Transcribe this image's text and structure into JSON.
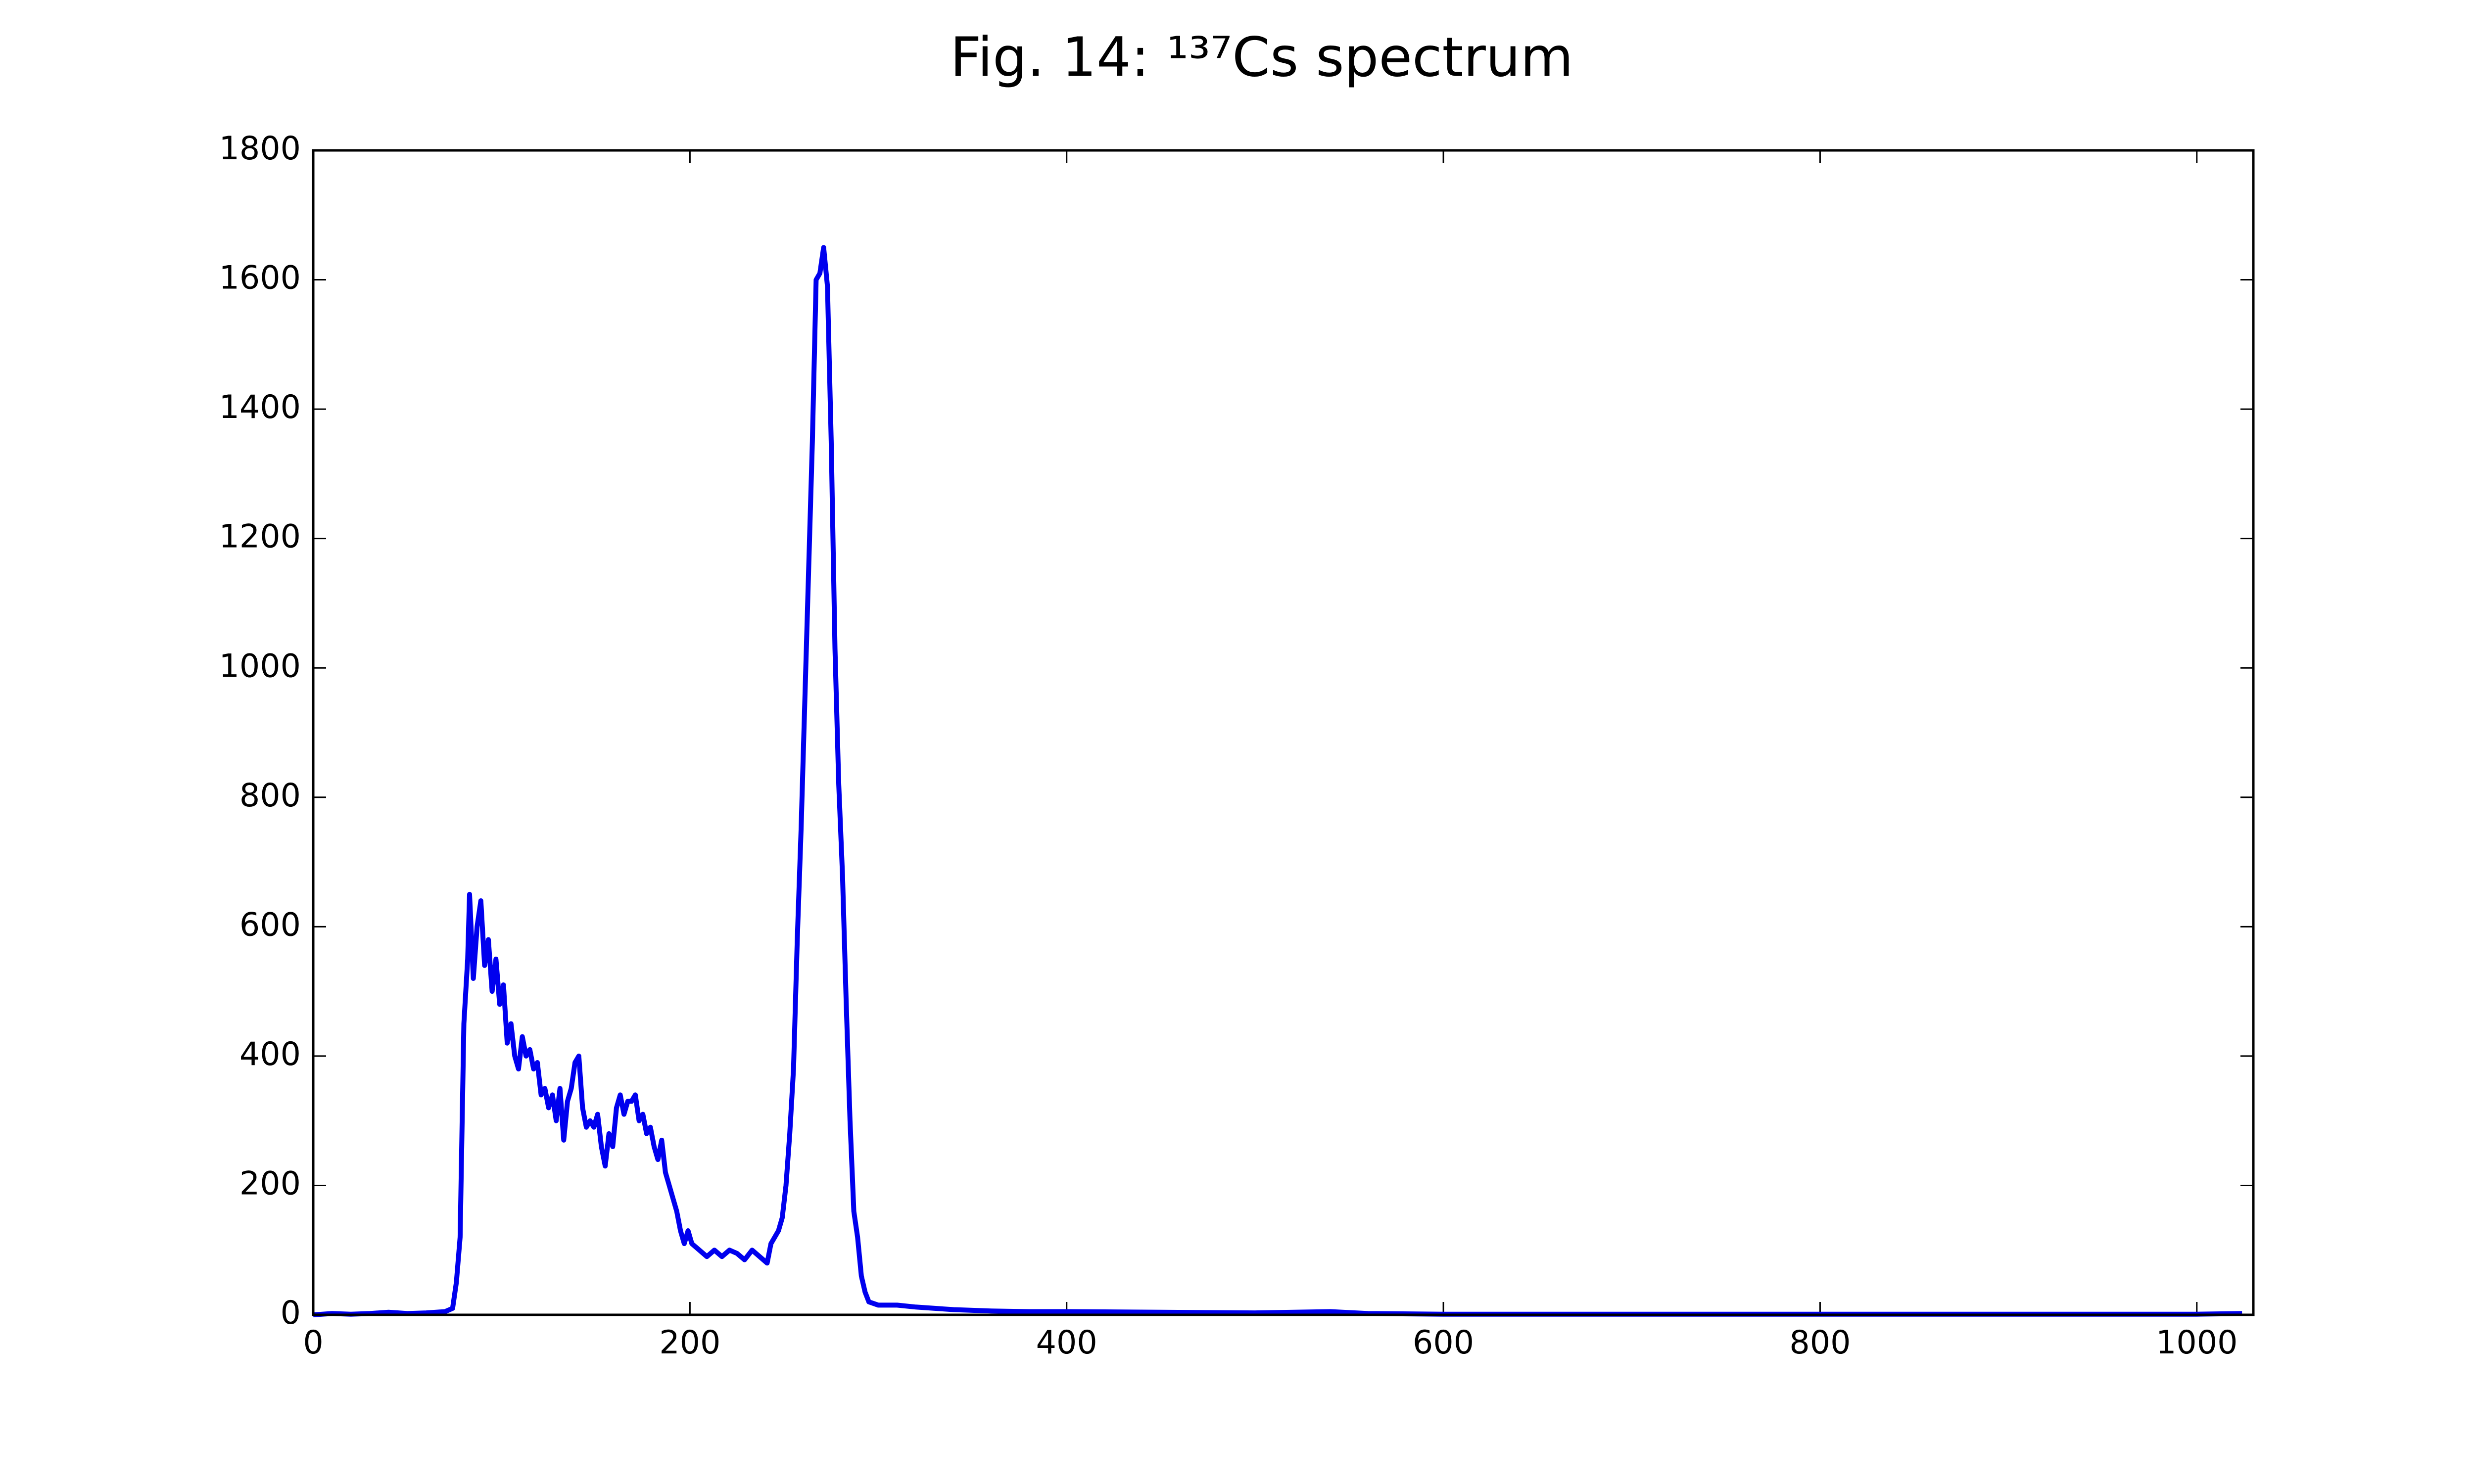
{
  "chart_data": {
    "type": "line",
    "title": "Fig. 14: ¹³⁷Cs spectrum",
    "color": "#0000ee",
    "x": [
      0,
      10,
      20,
      30,
      40,
      50,
      60,
      70,
      74,
      76,
      78,
      80,
      82,
      83,
      85,
      87,
      89,
      91,
      93,
      95,
      97,
      99,
      101,
      103,
      105,
      107,
      109,
      111,
      113,
      115,
      117,
      119,
      121,
      123,
      125,
      127,
      129,
      131,
      133,
      135,
      137,
      139,
      141,
      143,
      145,
      147,
      149,
      151,
      153,
      155,
      157,
      159,
      161,
      163,
      165,
      167,
      169,
      171,
      173,
      175,
      177,
      179,
      181,
      183,
      185,
      187,
      189,
      191,
      193,
      195,
      197,
      199,
      201,
      205,
      209,
      213,
      217,
      221,
      225,
      229,
      233,
      237,
      241,
      243,
      245,
      247,
      249,
      251,
      253,
      255,
      257,
      259,
      261,
      263,
      265,
      267,
      269,
      271,
      273,
      275,
      277,
      279,
      281,
      283,
      285,
      287,
      289,
      291,
      293,
      295,
      300,
      310,
      320,
      330,
      340,
      360,
      380,
      400,
      450,
      500,
      540,
      560,
      600,
      700,
      800,
      900,
      1000,
      1024
    ],
    "values": [
      0,
      2,
      1,
      2,
      4,
      2,
      3,
      5,
      10,
      50,
      120,
      450,
      550,
      650,
      520,
      600,
      640,
      540,
      580,
      500,
      550,
      480,
      510,
      420,
      450,
      400,
      380,
      430,
      400,
      410,
      380,
      390,
      340,
      350,
      320,
      340,
      300,
      350,
      270,
      330,
      350,
      390,
      400,
      320,
      290,
      300,
      290,
      310,
      260,
      230,
      280,
      260,
      320,
      340,
      310,
      330,
      330,
      340,
      300,
      310,
      280,
      290,
      260,
      240,
      270,
      220,
      200,
      180,
      160,
      130,
      110,
      130,
      110,
      100,
      90,
      100,
      90,
      100,
      95,
      85,
      100,
      90,
      80,
      110,
      120,
      130,
      150,
      200,
      280,
      380,
      580,
      750,
      950,
      1150,
      1350,
      1600,
      1610,
      1650,
      1590,
      1350,
      1030,
      820,
      680,
      480,
      300,
      160,
      120,
      60,
      35,
      20,
      15,
      15,
      12,
      10,
      8,
      6,
      5,
      5,
      4,
      3,
      5,
      2,
      1,
      1,
      1,
      1,
      1,
      2
    ],
    "xlim": [
      0,
      1030
    ],
    "ylim": [
      0,
      1800
    ],
    "xticks": [
      0,
      200,
      400,
      600,
      800,
      1000
    ],
    "yticks": [
      0,
      200,
      400,
      600,
      800,
      1000,
      1200,
      1400,
      1600,
      1800
    ]
  }
}
